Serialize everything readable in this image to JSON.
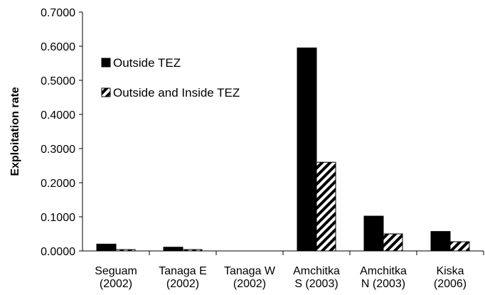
{
  "chart_data": {
    "type": "bar",
    "y_label": "Exploitation rate",
    "categories": [
      "Seguam\n(2002)",
      "Tanaga E\n(2002)",
      "Tanaga W\n(2002)",
      "Amchitka\nS (2003)",
      "Amchitka\nN (2003)",
      "Kiska\n(2006)"
    ],
    "series": [
      {
        "name": "Outside TEZ",
        "color": "#000000",
        "pattern": "solid",
        "values": [
          0.02,
          0.011,
          0,
          0.595,
          0.102,
          0.057
        ]
      },
      {
        "name": "Outside and Inside TEZ",
        "color": "#000000",
        "pattern": "hatch",
        "values": [
          0.004,
          0.004,
          0,
          0.26,
          0.05,
          0.027
        ]
      }
    ],
    "ylim": [
      0,
      0.7
    ],
    "yticks": [
      {
        "value": 0,
        "label": "0.0000"
      },
      {
        "value": 0.1,
        "label": "0.1000"
      },
      {
        "value": 0.2,
        "label": "0.2000"
      },
      {
        "value": 0.3,
        "label": "0.3000"
      },
      {
        "value": 0.4,
        "label": "0.4000"
      },
      {
        "value": 0.5,
        "label": "0.5000"
      },
      {
        "value": 0.6,
        "label": "0.6000"
      },
      {
        "value": 0.7,
        "label": "0.7000"
      }
    ],
    "grid": false,
    "legend": "upper-left"
  }
}
